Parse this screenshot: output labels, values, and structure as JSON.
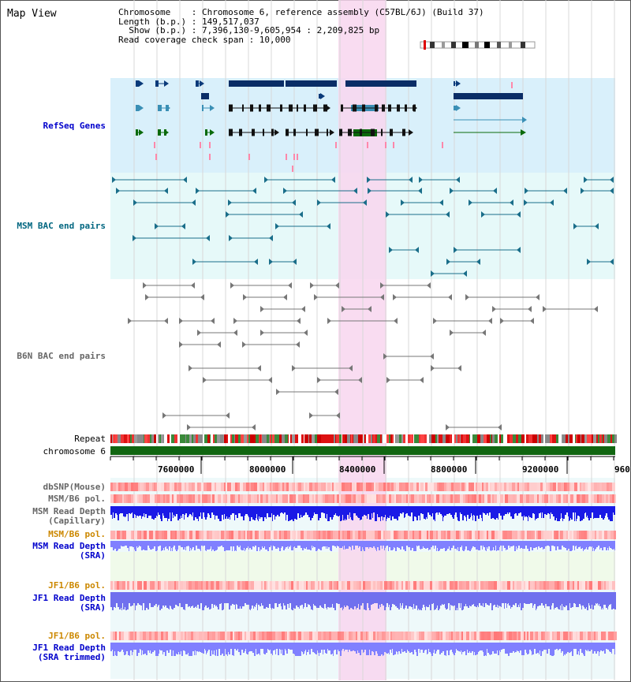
{
  "page_title": "Map View",
  "info": {
    "chromosome": "Chromosome    : Chromosome 6, reference assembly (C57BL/6J) (Build 37)",
    "length": "Length (b.p.) : 149,517,037",
    "show": "  Show (b.p.) : 7,396,130-9,605,954 : 2,209,825 bp",
    "span": "Read coverage check span : 10,000"
  },
  "tracks": {
    "refseq": "RefSeq Genes",
    "msm_bac": "MSM BAC end pairs",
    "b6n_bac": "B6N BAC end pairs",
    "repeat": "Repeat",
    "chromosome": "chromosome 6",
    "dbsnp": "dbSNP(Mouse)",
    "msm_b6_pol": "MSM/B6 pol.",
    "msm_depth_cap_1": "MSM Read Depth",
    "msm_depth_cap_2": "(Capillary)",
    "msm_b6_pol_2": "MSM/B6 pol.",
    "msm_depth_sra_1": "MSM Read Depth",
    "msm_depth_sra_2": "(SRA)",
    "jf1_b6_pol": "JF1/B6 pol.",
    "jf1_depth_sra_1": "JF1 Read Depth",
    "jf1_depth_sra_2": "(SRA)",
    "jf1_b6_pol_2": "JF1/B6 pol.",
    "jf1_depth_trim_1": "JF1 Read Depth",
    "jf1_depth_trim_2": "(SRA trimmed)"
  },
  "axis": {
    "ticks": [
      "7600000",
      "8000000",
      "8400000",
      "8800000",
      "9200000",
      "960"
    ]
  },
  "colors": {
    "refseq_bg": "#d9f0fb",
    "msm_bg": "#e6f9f9",
    "highlight": "#f8d6ee",
    "refseq_label": "#0000cc",
    "msm_label": "#006680",
    "b6n_label": "#666666",
    "pol_label": "#cc8800",
    "depth_label": "#0000cc"
  }
}
